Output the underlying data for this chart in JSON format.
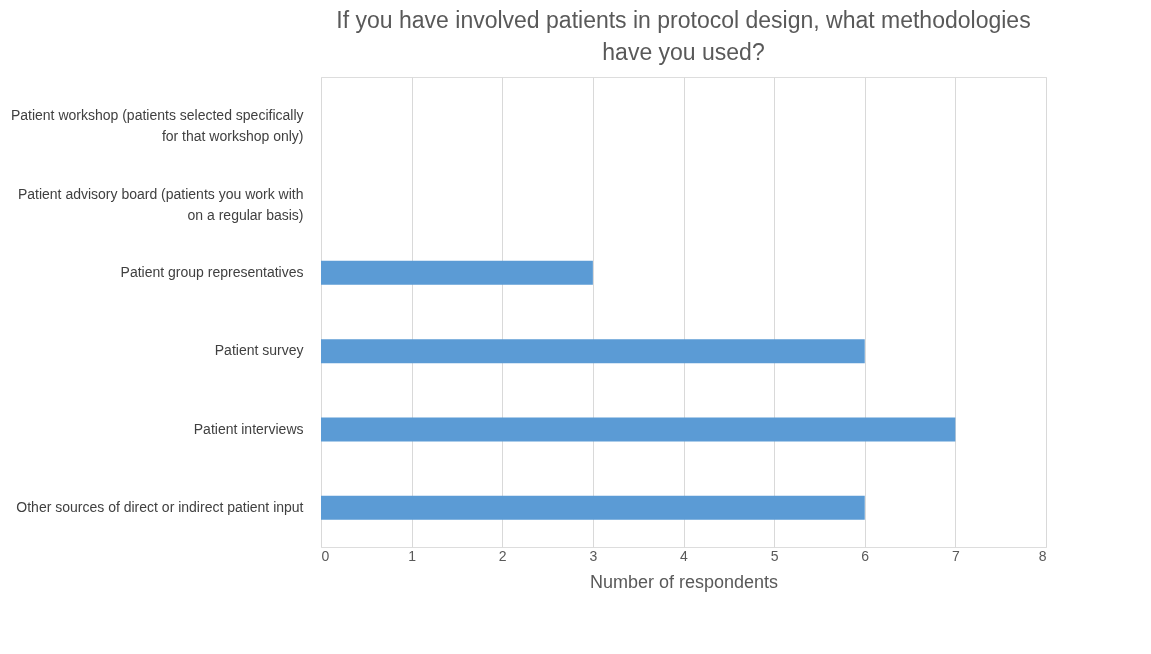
{
  "chart_data": {
    "type": "bar",
    "orientation": "horizontal",
    "title": "If you have involved patients in protocol design, what methodologies have you used?",
    "xlabel": "Number of respondents",
    "categories": [
      "Patient workshop (patients selected specifically for that workshop only)",
      "Patient advisory board (patients you work with on a regular basis)",
      "Patient group representatives",
      "Patient survey",
      "Patient interviews",
      "Other sources of direct or indirect patient input"
    ],
    "values": [
      0,
      0,
      3,
      6,
      7,
      6
    ],
    "color": "#5b9bd5",
    "xlim": [
      0,
      8
    ],
    "xticks": [
      0,
      1,
      2,
      3,
      4,
      5,
      6,
      7,
      8
    ],
    "grid": "x"
  }
}
